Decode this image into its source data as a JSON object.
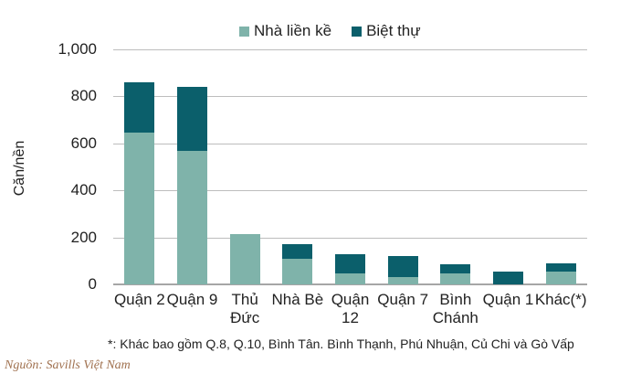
{
  "chart_data": {
    "type": "bar",
    "stacked": true,
    "title": "",
    "xlabel": "",
    "ylabel": "Căn/nền",
    "ylim": [
      0,
      1000
    ],
    "yticks": [
      "0",
      "200",
      "400",
      "600",
      "800",
      "1,000"
    ],
    "grid": true,
    "legend_position": "top",
    "categories": [
      "Quận 2",
      "Quận 9",
      "Thủ Đức",
      "Nhà Bè",
      "Quận 12",
      "Quận 7",
      "Bình Chánh",
      "Quận 1",
      "Khác(*)"
    ],
    "category_lines": [
      [
        "Quận 2"
      ],
      [
        "Quận 9"
      ],
      [
        "Thủ",
        "Đức"
      ],
      [
        "Nhà Bè"
      ],
      [
        "Quận",
        "12"
      ],
      [
        "Quận 7"
      ],
      [
        "Bình",
        "Chánh"
      ],
      [
        "Quận 1"
      ],
      [
        "Khác(*)"
      ]
    ],
    "series": [
      {
        "name": "Nhà liền kề",
        "color": "#7fb3aa",
        "values": [
          647,
          570,
          214,
          109,
          45,
          30,
          45,
          0,
          56
        ]
      },
      {
        "name": "Biệt thự",
        "color": "#0b5f6b",
        "values": [
          212,
          271,
          0,
          62,
          82,
          92,
          40,
          54,
          34
        ]
      }
    ],
    "footnote": "*: Khác bao gồm Q.8, Q.10, Bình Tân. Bình Thạnh, Phú Nhuận, Củ Chi và Gò Vấp"
  },
  "legend": {
    "items": [
      {
        "label": "Nhà liền kề",
        "color": "#7fb3aa"
      },
      {
        "label": "Biệt thự",
        "color": "#0b5f6b"
      }
    ]
  },
  "source": "Nguồn: Savills Việt Nam"
}
